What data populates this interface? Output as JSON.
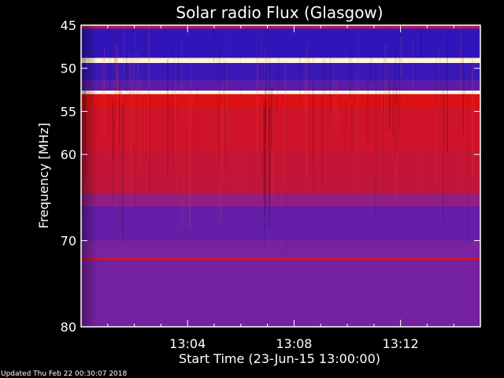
{
  "chart_data": {
    "type": "heatmap",
    "title": "Solar radio Flux (Glasgow)",
    "xlabel": "Start Time (23-Jun-15 13:00:00)",
    "ylabel": "Frequency [MHz]",
    "x_range_minutes": [
      0,
      15
    ],
    "x_ticks": [
      {
        "value": 4,
        "label": "13:04"
      },
      {
        "value": 8,
        "label": "13:08"
      },
      {
        "value": 12,
        "label": "13:12"
      }
    ],
    "y_range": [
      45,
      80
    ],
    "y_inverted": true,
    "y_ticks": [
      {
        "value": 45,
        "label": "45"
      },
      {
        "value": 50,
        "label": "50"
      },
      {
        "value": 55,
        "label": "55"
      },
      {
        "value": 60,
        "label": "60"
      },
      {
        "value": 70,
        "label": "70"
      },
      {
        "value": 80,
        "label": "80"
      }
    ],
    "bands": [
      {
        "from": 45.0,
        "to": 45.4,
        "intensity": 0.55
      },
      {
        "from": 45.4,
        "to": 48.8,
        "intensity": 0.12
      },
      {
        "from": 48.8,
        "to": 49.4,
        "intensity": 1.0
      },
      {
        "from": 49.4,
        "to": 51.4,
        "intensity": 0.15
      },
      {
        "from": 51.4,
        "to": 52.6,
        "intensity": 0.25
      },
      {
        "from": 52.6,
        "to": 53.0,
        "intensity": 1.0
      },
      {
        "from": 53.0,
        "to": 54.5,
        "intensity": 0.78
      },
      {
        "from": 54.5,
        "to": 59.5,
        "intensity": 0.72
      },
      {
        "from": 59.5,
        "to": 62.5,
        "intensity": 0.68
      },
      {
        "from": 62.5,
        "to": 64.5,
        "intensity": 0.66
      },
      {
        "from": 64.5,
        "to": 66.0,
        "intensity": 0.45
      },
      {
        "from": 66.0,
        "to": 70.0,
        "intensity": 0.28
      },
      {
        "from": 70.0,
        "to": 72.0,
        "intensity": 0.35
      },
      {
        "from": 72.0,
        "to": 72.3,
        "intensity": 0.75
      },
      {
        "from": 72.3,
        "to": 80.0,
        "intensity": 0.33
      }
    ],
    "colors": {
      "low": "#0a10c8",
      "mid": "#7a22a0",
      "high": "#e01010",
      "peak": "#fff4d8",
      "background": "#000000",
      "frame": "#ffffff"
    }
  },
  "footer": {
    "updated": "Updated Thu Feb 22 00:30:07 2018"
  }
}
